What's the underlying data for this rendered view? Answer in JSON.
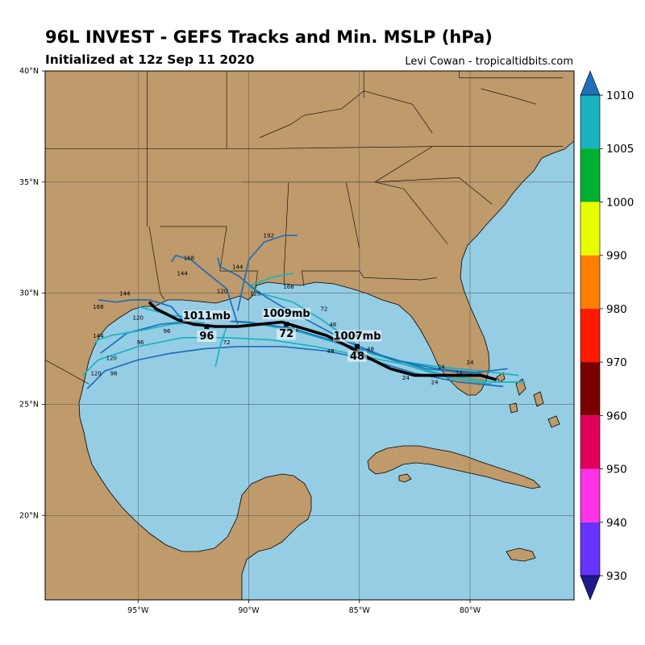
{
  "header": {
    "title": "96L INVEST - GEFS Tracks and Min. MSLP (hPa)",
    "subtitle": "Initialized at 12z Sep 11 2020",
    "credit": "Levi Cowan - tropicaltidbits.com"
  },
  "map": {
    "lon_ticks": [
      "95°W",
      "90°W",
      "85°W",
      "80°W"
    ],
    "lat_ticks": [
      "40°N",
      "35°N",
      "30°N",
      "25°N",
      "20°N"
    ],
    "colors": {
      "ocean": "#95cde4",
      "land": "#bf9a6b",
      "border": "#000000",
      "grid": "#555555"
    }
  },
  "colorbar": {
    "levels": [
      "1010",
      "1005",
      "1000",
      "990",
      "980",
      "970",
      "960",
      "950",
      "940",
      "930"
    ],
    "colors": [
      "#1f6fb8",
      "#19b3bf",
      "#00b030",
      "#e6ff00",
      "#ff7f00",
      "#ff1a00",
      "#7a0000",
      "#e0005a",
      "#ff33e6",
      "#6633ff",
      "#1a1a8c"
    ]
  },
  "chart_data": {
    "type": "map-tracks",
    "ensemble_mean_track": {
      "lon": [
        -78.8,
        -79.5,
        -80.5,
        -81.5,
        -82.5,
        -83.6,
        -84.6,
        -85.5,
        -86.5,
        -87.5,
        -88.5,
        -89.5,
        -90.5,
        -91.5,
        -92.5,
        -93.2,
        -93.8,
        -94.2,
        -94.5
      ],
      "lat": [
        26.1,
        26.3,
        26.3,
        26.3,
        26.3,
        26.6,
        27.1,
        27.6,
        28.1,
        28.4,
        28.7,
        28.6,
        28.5,
        28.5,
        28.6,
        28.8,
        29.1,
        29.3,
        29.6
      ]
    },
    "annotations": [
      {
        "pressure_label": "1007mb",
        "hour_label": "48",
        "lon": -85.1,
        "lat": 27.6
      },
      {
        "pressure_label": "1009mb",
        "hour_label": "72",
        "lon": -88.3,
        "lat": 28.6
      },
      {
        "pressure_label": "1011mb",
        "hour_label": "96",
        "lon": -91.9,
        "lat": 28.5
      }
    ],
    "member_hour_labels": [
      {
        "text": "24",
        "lon": -81.3,
        "lat": 26.6
      },
      {
        "text": "24",
        "lon": -80.5,
        "lat": 26.3
      },
      {
        "text": "24",
        "lon": -82.9,
        "lat": 26.1
      },
      {
        "text": "24",
        "lon": -81.6,
        "lat": 25.9
      },
      {
        "text": "24",
        "lon": -80.0,
        "lat": 26.8
      },
      {
        "text": "48",
        "lon": -86.2,
        "lat": 28.5
      },
      {
        "text": "48",
        "lon": -85.2,
        "lat": 28.0
      },
      {
        "text": "48",
        "lon": -84.5,
        "lat": 27.4
      },
      {
        "text": "48",
        "lon": -86.3,
        "lat": 27.3
      },
      {
        "text": "72",
        "lon": -86.6,
        "lat": 29.2
      },
      {
        "text": "72",
        "lon": -87.9,
        "lat": 28.3
      },
      {
        "text": "72",
        "lon": -91.0,
        "lat": 27.7
      },
      {
        "text": "96",
        "lon": -94.9,
        "lat": 27.7
      },
      {
        "text": "96",
        "lon": -93.7,
        "lat": 28.2
      },
      {
        "text": "96",
        "lon": -96.1,
        "lat": 26.3
      },
      {
        "text": "120",
        "lon": -91.2,
        "lat": 30.0
      },
      {
        "text": "120",
        "lon": -89.7,
        "lat": 29.9
      },
      {
        "text": "120",
        "lon": -95.0,
        "lat": 28.8
      },
      {
        "text": "120",
        "lon": -96.2,
        "lat": 27.0
      },
      {
        "text": "120",
        "lon": -96.9,
        "lat": 26.3
      },
      {
        "text": "144",
        "lon": -95.6,
        "lat": 29.9
      },
      {
        "text": "144",
        "lon": -93.0,
        "lat": 30.8
      },
      {
        "text": "144",
        "lon": -90.5,
        "lat": 31.1
      },
      {
        "text": "144",
        "lon": -96.8,
        "lat": 28.0
      },
      {
        "text": "168",
        "lon": -92.7,
        "lat": 31.5
      },
      {
        "text": "168",
        "lon": -88.2,
        "lat": 30.2
      },
      {
        "text": "168",
        "lon": -96.8,
        "lat": 29.3
      },
      {
        "text": "192",
        "lon": -89.1,
        "lat": 32.5
      }
    ],
    "member_tracks": [
      {
        "color": "teal",
        "lon": [
          -77.8,
          -79.5,
          -81.5,
          -83.5,
          -85.5,
          -87.5,
          -89.5,
          -91.5,
          -93.5,
          -95.0
        ],
        "lat": [
          26.3,
          26.5,
          26.7,
          27.0,
          27.6,
          28.2,
          28.6,
          28.8,
          29.0,
          29.4
        ]
      },
      {
        "color": "blue",
        "lon": [
          -78.3,
          -80.0,
          -82.0,
          -84.0,
          -86.0,
          -88.0,
          -90.0,
          -92.0,
          -94.0,
          -95.5,
          -96.7
        ],
        "lat": [
          26.6,
          26.4,
          26.6,
          27.2,
          27.8,
          28.4,
          28.7,
          28.8,
          28.6,
          28.2,
          27.3
        ]
      },
      {
        "color": "teal",
        "lon": [
          -77.5,
          -79.0,
          -81.0,
          -83.0,
          -85.0,
          -87.0,
          -89.0,
          -91.0,
          -93.0,
          -95.0,
          -96.8,
          -97.5
        ],
        "lat": [
          26.0,
          26.0,
          26.3,
          26.8,
          27.2,
          27.6,
          27.9,
          28.0,
          28.0,
          27.6,
          27.0,
          26.3
        ]
      },
      {
        "color": "blue",
        "lon": [
          -78.5,
          -80.5,
          -82.5,
          -84.5,
          -86.5,
          -88.5,
          -90.5,
          -92.0,
          -93.5,
          -95.0,
          -96.5,
          -97.3
        ],
        "lat": [
          25.8,
          26.0,
          26.4,
          27.0,
          27.4,
          27.6,
          27.6,
          27.5,
          27.3,
          27.0,
          26.5,
          25.7
        ]
      },
      {
        "color": "teal",
        "lon": [
          -79.0,
          -81.0,
          -83.0,
          -85.0,
          -86.7,
          -88.0,
          -89.5,
          -90.0,
          -89.0,
          -88.0
        ],
        "lat": [
          25.9,
          26.2,
          26.8,
          27.6,
          28.8,
          29.6,
          30.0,
          30.3,
          30.7,
          30.9
        ]
      },
      {
        "color": "blue",
        "lon": [
          -79.5,
          -81.5,
          -83.5,
          -85.5,
          -87.0,
          -88.5,
          -89.5,
          -90.5,
          -91.3,
          -91.4
        ],
        "lat": [
          26.4,
          26.6,
          27.0,
          27.8,
          28.6,
          29.4,
          30.0,
          30.8,
          31.2,
          31.6
        ]
      },
      {
        "color": "blue",
        "lon": [
          -90.5,
          -91.0,
          -92.0,
          -92.6,
          -93.3,
          -93.5
        ],
        "lat": [
          28.6,
          30.2,
          31.0,
          31.5,
          31.7,
          31.4
        ]
      },
      {
        "color": "blue",
        "lon": [
          -90.5,
          -90.0,
          -89.3,
          -88.4,
          -87.8
        ],
        "lat": [
          29.2,
          31.5,
          32.3,
          32.6,
          32.6
        ]
      },
      {
        "color": "blue",
        "lon": [
          -93.0,
          -93.5,
          -94.5,
          -95.3,
          -96.0,
          -96.8
        ],
        "lat": [
          28.8,
          29.4,
          29.7,
          29.7,
          29.6,
          29.7
        ]
      },
      {
        "color": "teal",
        "lon": [
          -91.0,
          -91.3,
          -91.5
        ],
        "lat": [
          28.5,
          27.6,
          26.7
        ]
      },
      {
        "color": "teal",
        "lon": [
          -92.0,
          -93.5,
          -95.0,
          -96.2,
          -96.8,
          -97.0
        ],
        "lat": [
          28.7,
          28.6,
          28.3,
          28.1,
          27.9,
          27.7
        ]
      }
    ]
  }
}
